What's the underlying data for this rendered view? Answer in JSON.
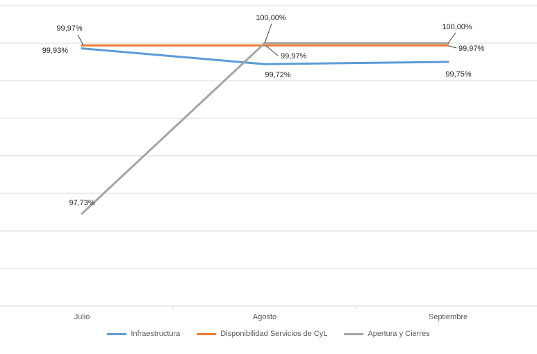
{
  "chart_data": {
    "type": "line",
    "categories": [
      "Julio",
      "Agosto",
      "Septiembre"
    ],
    "series": [
      {
        "name": "Infraestructura",
        "color": "#5b9bd5",
        "values": [
          99.93,
          99.72,
          99.75
        ],
        "labels": [
          "99,93%",
          "99,72%",
          "99,75%"
        ]
      },
      {
        "name": "Disponibilidad Servicios de CyL",
        "color": "#ed7d31",
        "values": [
          99.97,
          99.97,
          99.97
        ],
        "labels": [
          "99,97%",
          "99,97%",
          "99,97%"
        ]
      },
      {
        "name": "Apertura y Cierres",
        "color": "#a5a5a5",
        "values": [
          97.73,
          100.0,
          100.0
        ],
        "labels": [
          "97,73%",
          "100,00%",
          "100,00%"
        ]
      }
    ],
    "ylim": [
      96.5,
      100.5
    ],
    "ytick_step": 0.5,
    "grid": true,
    "legend": "bottom",
    "title": "",
    "xlabel": "",
    "ylabel": ""
  }
}
